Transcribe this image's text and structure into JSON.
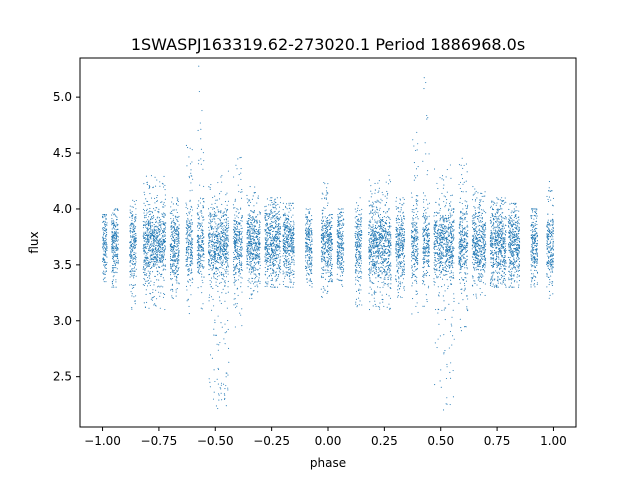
{
  "chart_data": {
    "type": "scatter",
    "title": "1SWASPJ163319.62-273020.1 Period 1886968.0s",
    "xlabel": "phase",
    "ylabel": "flux",
    "xlim": [
      -1.1,
      1.1
    ],
    "ylim": [
      2.05,
      5.35
    ],
    "grid": false,
    "legend": "none",
    "marker_color": "#1f77b4",
    "x_ticks": [
      -1.0,
      -0.75,
      -0.5,
      -0.25,
      0.0,
      0.25,
      0.5,
      0.75,
      1.0
    ],
    "x_tick_labels": [
      "−1.00",
      "−0.75",
      "−0.50",
      "−0.25",
      "0.00",
      "0.25",
      "0.50",
      "0.75",
      "1.00"
    ],
    "y_ticks": [
      2.5,
      3.0,
      3.5,
      4.0,
      4.5,
      5.0
    ],
    "y_tick_labels": [
      "2.5",
      "3.0",
      "3.5",
      "4.0",
      "4.5",
      "5.0"
    ],
    "series": [
      {
        "symmetric_about_phase": 0.0,
        "baseline_flux": 3.68,
        "scatter_sigma": 0.17,
        "phase_bands": [
          {
            "x": [
              -1.0,
              -0.98
            ],
            "y": [
              3.35,
              3.95
            ]
          },
          {
            "x": [
              -0.96,
              -0.93
            ],
            "y": [
              3.3,
              4.0
            ]
          },
          {
            "x": [
              -0.88,
              -0.85
            ],
            "y": [
              3.1,
              4.1
            ]
          },
          {
            "x": [
              -0.82,
              -0.72
            ],
            "y": [
              3.1,
              4.3
            ]
          },
          {
            "x": [
              -0.7,
              -0.66
            ],
            "y": [
              3.2,
              4.1
            ]
          },
          {
            "x": [
              -0.63,
              -0.6
            ],
            "y": [
              3.0,
              4.7
            ]
          },
          {
            "x": [
              -0.58,
              -0.55
            ],
            "y": [
              3.0,
              5.28
            ]
          },
          {
            "x": [
              -0.53,
              -0.44
            ],
            "y": [
              2.2,
              4.4
            ]
          },
          {
            "x": [
              -0.42,
              -0.38
            ],
            "y": [
              2.9,
              4.5
            ]
          },
          {
            "x": [
              -0.36,
              -0.3
            ],
            "y": [
              3.2,
              4.2
            ]
          },
          {
            "x": [
              -0.28,
              -0.21
            ],
            "y": [
              3.3,
              4.1
            ]
          },
          {
            "x": [
              -0.2,
              -0.15
            ],
            "y": [
              3.3,
              4.05
            ]
          },
          {
            "x": [
              -0.1,
              -0.07
            ],
            "y": [
              3.3,
              4.0
            ]
          },
          {
            "x": [
              -0.03,
              0.0
            ],
            "y": [
              3.2,
              4.25
            ]
          }
        ]
      }
    ]
  }
}
